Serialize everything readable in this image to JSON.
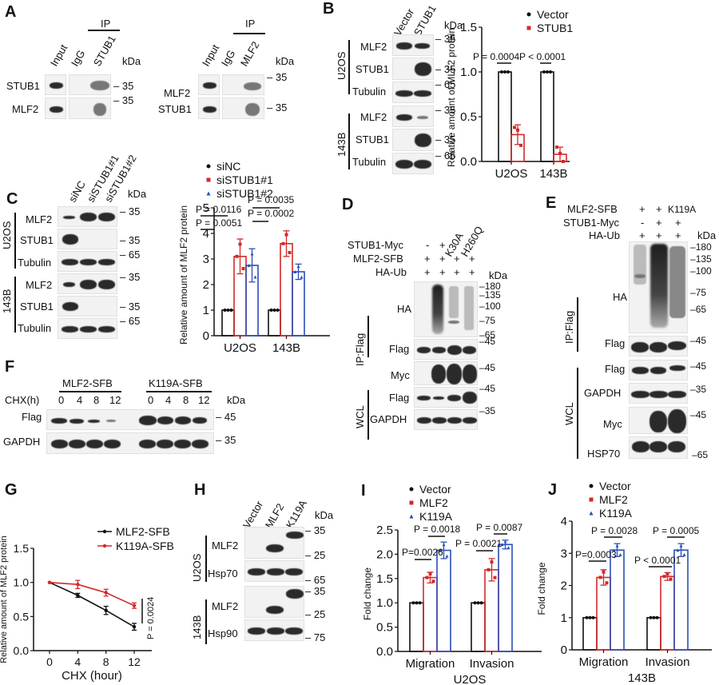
{
  "panels": {
    "A": {
      "label": "A",
      "left": {
        "ip_label": "IP",
        "lanes": [
          "Input",
          "IgG",
          "STUB1"
        ],
        "kda": "kDa",
        "rows": [
          "STUB1",
          "MLF2"
        ],
        "markers": [
          "35",
          "35"
        ]
      },
      "right": {
        "ip_label": "IP",
        "lanes": [
          "Input",
          "IgG",
          "MLF2"
        ],
        "kda": "kDa",
        "rows": [
          "MLF2",
          "STUB1"
        ],
        "markers": [
          "35",
          "35"
        ]
      }
    },
    "B": {
      "label": "B",
      "lanes": [
        "Vector",
        "STUB1"
      ],
      "kda": "kDa",
      "groups": [
        {
          "name": "U2OS",
          "rows": [
            "MLF2",
            "STUB1",
            "Tubulin"
          ],
          "markers": [
            "35",
            "35",
            "65"
          ]
        },
        {
          "name": "143B",
          "rows": [
            "MLF2",
            "STUB1",
            "Tubulin"
          ],
          "markers": [
            "35",
            "35",
            "65"
          ]
        }
      ]
    },
    "C": {
      "label": "C",
      "lanes": [
        "siNC",
        "siSTUB1#1",
        "siSTUB1#2"
      ],
      "kda": "kDa",
      "groups": [
        {
          "name": "U2OS",
          "rows": [
            "MLF2",
            "STUB1",
            "Tubulin"
          ],
          "markers": [
            "35",
            "35",
            "65"
          ]
        },
        {
          "name": "143B",
          "rows": [
            "MLF2",
            "STUB1",
            "Tubulin"
          ],
          "markers": [
            "35",
            "35",
            "65"
          ]
        }
      ]
    },
    "D": {
      "label": "D",
      "conditions": [
        {
          "name": "STUB1-Myc",
          "values": [
            "-",
            "+",
            "K30A",
            "H260Q"
          ]
        },
        {
          "name": "MLF2-SFB",
          "values": [
            "+",
            "+",
            "+",
            "+"
          ]
        },
        {
          "name": "HA-Ub",
          "values": [
            "+",
            "+",
            "+",
            "+"
          ]
        }
      ],
      "kda": "kDa",
      "ip_group": "IP:Flag",
      "wcl_group": "WCL",
      "rows": [
        "HA",
        "Flag",
        "Myc",
        "Flag",
        "GAPDH"
      ],
      "ha_markers": [
        "180",
        "135",
        "100",
        "75",
        "65"
      ],
      "markers": [
        "45",
        "45",
        "45",
        "35"
      ]
    },
    "E": {
      "label": "E",
      "conditions": [
        {
          "name": "MLF2-SFB",
          "values": [
            "+",
            "+",
            "K119A"
          ]
        },
        {
          "name": "STUB1-Myc",
          "values": [
            "-",
            "+",
            "+"
          ]
        },
        {
          "name": "HA-Ub",
          "values": [
            "+",
            "+",
            "+"
          ]
        }
      ],
      "kda": "kDa",
      "ip_group": "IP:Flag",
      "wcl_group": "WCL",
      "rows": [
        "HA",
        "Flag",
        "Flag",
        "GAPDH",
        "Myc",
        "HSP70"
      ],
      "ha_markers": [
        "180",
        "135",
        "100",
        "75",
        "65"
      ],
      "markers": [
        "45",
        "45",
        "35",
        "45",
        "65"
      ]
    },
    "F": {
      "label": "F",
      "groups": [
        "MLF2-SFB",
        "K119A-SFB"
      ],
      "chx_label": "CHX(h)",
      "timepoints": [
        "0",
        "4",
        "8",
        "12",
        "0",
        "4",
        "8",
        "12"
      ],
      "kda": "kDa",
      "rows": [
        "Flag",
        "GAPDH"
      ],
      "markers": [
        "45",
        "35"
      ]
    },
    "G": {
      "label": "G"
    },
    "H": {
      "label": "H",
      "lanes": [
        "Vector",
        "MLF2",
        "K119A"
      ],
      "kda": "kDa",
      "groups": [
        {
          "name": "U2OS",
          "rows": [
            "MLF2",
            "Hsp70"
          ],
          "markers": [
            "35",
            "25",
            "65"
          ]
        },
        {
          "name": "143B",
          "rows": [
            "MLF2",
            "Hsp90"
          ],
          "markers": [
            "35",
            "25",
            "75"
          ]
        }
      ]
    },
    "I": {
      "label": "I"
    },
    "J": {
      "label": "J"
    }
  },
  "colors": {
    "black": "#111111",
    "red": "#d32a2a",
    "blue": "#2b4fb5"
  },
  "chart_data": [
    {
      "id": "B",
      "type": "bar",
      "title": "",
      "categories": [
        "U2OS",
        "143B"
      ],
      "series": [
        {
          "name": "Vector",
          "values": [
            1.0,
            1.0
          ],
          "errors": [
            0,
            0
          ],
          "points": [
            [
              1.0,
              1.0,
              1.0
            ],
            [
              1.0,
              1.0,
              1.0
            ]
          ],
          "color": "#111111",
          "marker": "circle"
        },
        {
          "name": "STUB1",
          "values": [
            0.3,
            0.08
          ],
          "errors": [
            0.11,
            0.08
          ],
          "points": [
            [
              0.38,
              0.35,
              0.18
            ],
            [
              0.16,
              0.09,
              0.0
            ]
          ],
          "color": "#d32a2a",
          "marker": "square"
        }
      ],
      "xlabel": "",
      "ylabel": "Relative amount of MLF2 protein",
      "ylim": [
        0,
        1.5
      ],
      "yticks": [
        "0.0",
        "0.5",
        "1.0",
        "1.5"
      ],
      "annotations": [
        "P = 0.0004",
        "P < 0.0001"
      ],
      "legend_position": "top"
    },
    {
      "id": "C",
      "type": "bar",
      "categories": [
        "U2OS",
        "143B"
      ],
      "series": [
        {
          "name": "siNC",
          "values": [
            1.0,
            1.0
          ],
          "errors": [
            0,
            0
          ],
          "color": "#111111",
          "marker": "circle"
        },
        {
          "name": "siSTUB1#1",
          "values": [
            3.1,
            3.6
          ],
          "errors": [
            0.68,
            0.5
          ],
          "color": "#d32a2a",
          "marker": "square"
        },
        {
          "name": "siSTUB1#2",
          "values": [
            2.75,
            2.5
          ],
          "errors": [
            0.65,
            0.3
          ],
          "color": "#2b4fb5",
          "marker": "triangle"
        }
      ],
      "ylabel": "Relative amount of MLF2 protein",
      "ylim": [
        0,
        5
      ],
      "yticks": [
        "0",
        "1",
        "2",
        "3",
        "4",
        "5"
      ],
      "annotations": [
        "P = 0.0116",
        "P = 0.0051",
        "P = 0.0035",
        "P = 0.0002"
      ],
      "legend_position": "top"
    },
    {
      "id": "G",
      "type": "line",
      "x": [
        0,
        4,
        8,
        12
      ],
      "series": [
        {
          "name": "MLF2-SFB",
          "values": [
            1.0,
            0.81,
            0.59,
            0.35
          ],
          "errors": [
            0,
            0.03,
            0.06,
            0.05
          ],
          "color": "#111111"
        },
        {
          "name": "K119A-SFB",
          "values": [
            1.0,
            0.97,
            0.85,
            0.66
          ],
          "errors": [
            0,
            0.06,
            0.05,
            0.04
          ],
          "color": "#d32a2a"
        }
      ],
      "xlabel": "CHX (hour)",
      "ylabel": "Relative amount of MLF2 protein",
      "ylim": [
        0,
        1.5
      ],
      "yticks": [
        "0.0",
        "0.5",
        "1.0",
        "1.5"
      ],
      "xticks": [
        "0",
        "4",
        "8",
        "12"
      ],
      "annotations": [
        "P = 0.0024"
      ],
      "legend_position": "top-right"
    },
    {
      "id": "I",
      "type": "bar",
      "categories": [
        "Migration",
        "Invasion"
      ],
      "series": [
        {
          "name": "Vector",
          "values": [
            1.0,
            1.0
          ],
          "errors": [
            0,
            0
          ],
          "color": "#111111",
          "marker": "circle"
        },
        {
          "name": "MLF2",
          "values": [
            1.52,
            1.68
          ],
          "errors": [
            0.11,
            0.23
          ],
          "color": "#d32a2a",
          "marker": "square"
        },
        {
          "name": "K119A",
          "values": [
            2.08,
            2.2
          ],
          "errors": [
            0.17,
            0.09
          ],
          "color": "#2b4fb5",
          "marker": "triangle"
        }
      ],
      "xlabel": "U2OS",
      "ylabel": "Fold change",
      "ylim": [
        0,
        2.5
      ],
      "yticks": [
        "0.0",
        "0.5",
        "1.0",
        "1.5",
        "2.0",
        "2.5"
      ],
      "annotations": [
        "P=0.0026",
        "P = 0.0018",
        "P = 0.0021",
        "P = 0.0087"
      ],
      "legend_position": "top"
    },
    {
      "id": "J",
      "type": "bar",
      "categories": [
        "Migration",
        "Invasion"
      ],
      "series": [
        {
          "name": "Vector",
          "values": [
            1.0,
            1.0
          ],
          "errors": [
            0,
            0
          ],
          "color": "#111111",
          "marker": "circle"
        },
        {
          "name": "MLF2",
          "values": [
            2.25,
            2.28
          ],
          "errors": [
            0.24,
            0.12
          ],
          "color": "#d32a2a",
          "marker": "square"
        },
        {
          "name": "K119A",
          "values": [
            3.1,
            3.1
          ],
          "errors": [
            0.2,
            0.2
          ],
          "color": "#2b4fb5",
          "marker": "triangle"
        }
      ],
      "xlabel": "143B",
      "ylabel": "Fold change",
      "ylim": [
        0,
        4
      ],
      "yticks": [
        "0",
        "1",
        "2",
        "3",
        "4"
      ],
      "annotations": [
        "P=0.0003",
        "P = 0.0028",
        "P < 0.0001",
        "P = 0.0005"
      ],
      "legend_position": "top"
    }
  ]
}
